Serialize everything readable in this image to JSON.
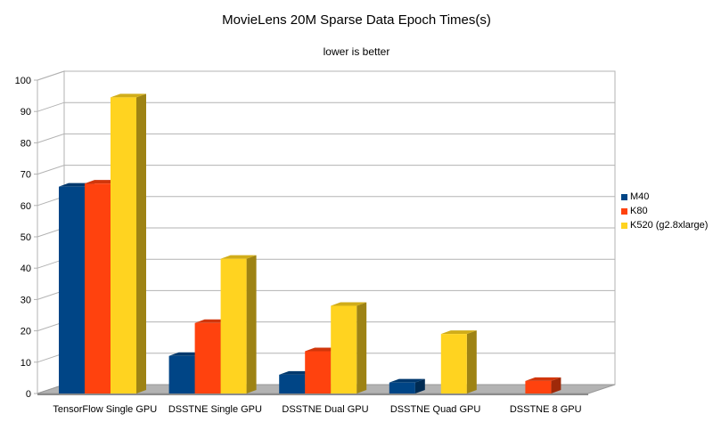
{
  "chart_data": {
    "type": "bar",
    "title": "MovieLens 20M Sparse Data Epoch Times(s)",
    "subtitle": "lower is better",
    "xlabel": "",
    "ylabel": "",
    "ylim": [
      0,
      100
    ],
    "yticks": [
      "0",
      "10",
      "20",
      "30",
      "40",
      "50",
      "60",
      "70",
      "80",
      "90",
      "100"
    ],
    "grid": true,
    "legend_position": "right",
    "categories": [
      "TensorFlow Single GPU",
      "DSSTNE Single GPU",
      "DSSTNE Dual GPU",
      "DSSTNE Quad GPU",
      "DSSTNE 8 GPU"
    ],
    "series": [
      {
        "name": "M40",
        "color": "#004586",
        "values": [
          66,
          12,
          6,
          3.5,
          null
        ]
      },
      {
        "name": "K80",
        "color": "#ff420e",
        "values": [
          67,
          22.5,
          13.5,
          null,
          4
        ]
      },
      {
        "name": "K520 (g2.8xlarge)",
        "color": "#ffd320",
        "values": [
          94.5,
          43,
          28,
          19,
          null
        ]
      }
    ]
  }
}
